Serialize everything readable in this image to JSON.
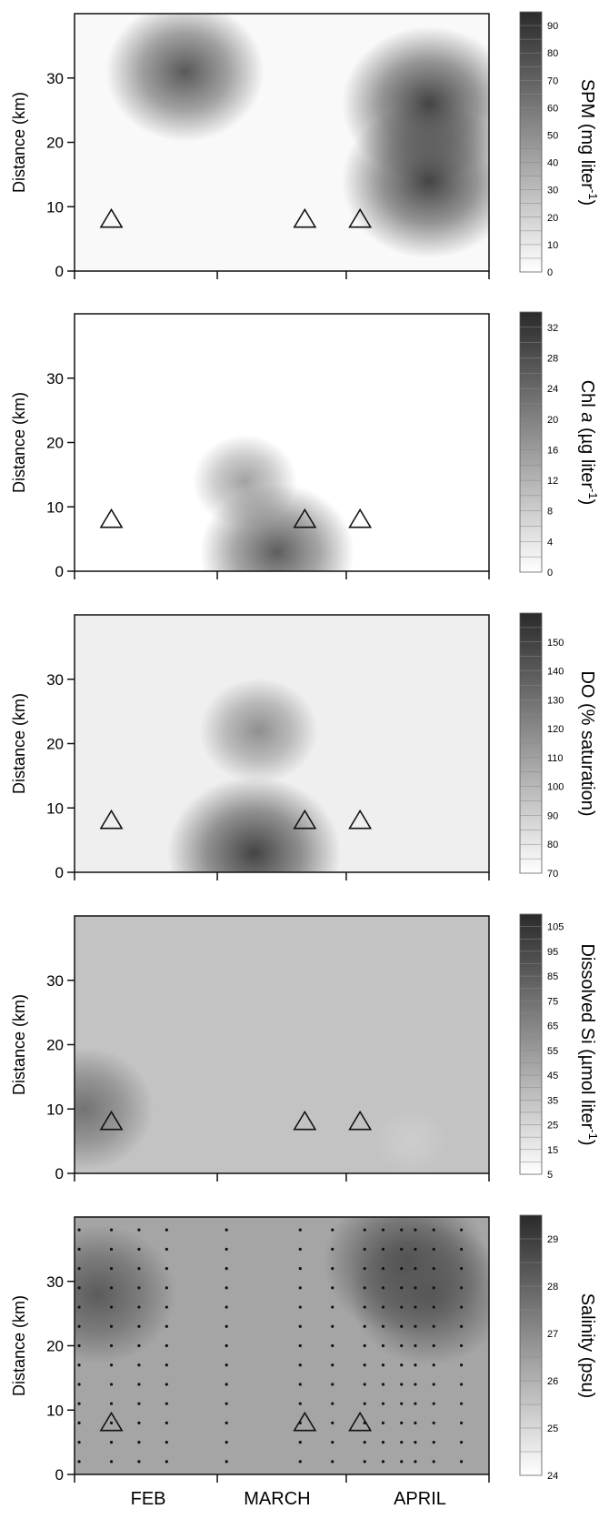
{
  "chart_data": [
    {
      "type": "heatmap",
      "ylabel": "Distance (km)",
      "yticks": [
        0,
        10,
        20,
        30
      ],
      "ylim": [
        0,
        40
      ],
      "colorbar": {
        "title": "SPM (mg liter",
        "title_sup": "-1",
        "title_end": ")",
        "ticks": [
          0,
          10,
          20,
          30,
          40,
          50,
          60,
          70,
          80,
          90
        ],
        "range": [
          0,
          95
        ]
      },
      "hotspots": [
        {
          "date": "Feb 18",
          "distance_km": 31,
          "value": 75
        },
        {
          "date": "Apr 12",
          "distance_km": 26,
          "value": 85
        },
        {
          "date": "Apr 12",
          "distance_km": 14,
          "value": 85
        }
      ],
      "background_level": 0.03,
      "markers": [
        {
          "date": "Feb 2",
          "distance_km": 8
        },
        {
          "date": "Mar 16",
          "distance_km": 8
        },
        {
          "date": "Mar 28",
          "distance_km": 8
        }
      ]
    },
    {
      "type": "heatmap",
      "ylabel": "Distance (km)",
      "yticks": [
        0,
        10,
        20,
        30
      ],
      "ylim": [
        0,
        40
      ],
      "colorbar": {
        "title": "Chl",
        "title_italic": "a",
        "title_rest": " (µg liter",
        "title_sup": "-1",
        "title_end": ")",
        "ticks": [
          0,
          4,
          8,
          12,
          16,
          20,
          24,
          28,
          32
        ],
        "range": [
          0,
          34
        ]
      },
      "hotspots": [
        {
          "date": "Mar 3",
          "distance_km": 14,
          "value": 15
        },
        {
          "date": "Mar 10",
          "distance_km": 3,
          "value": 26
        }
      ],
      "background_level": 0.0,
      "markers": [
        {
          "date": "Feb 2",
          "distance_km": 8
        },
        {
          "date": "Mar 16",
          "distance_km": 8
        },
        {
          "date": "Mar 28",
          "distance_km": 8
        }
      ]
    },
    {
      "type": "heatmap",
      "ylabel": "Distance (km)",
      "yticks": [
        0,
        10,
        20,
        30
      ],
      "ylim": [
        0,
        40
      ],
      "colorbar": {
        "title": "DO (% saturation)",
        "ticks": [
          70,
          80,
          90,
          100,
          110,
          120,
          130,
          140,
          150
        ],
        "range": [
          70,
          160
        ]
      },
      "hotspots": [
        {
          "date": "Mar 6",
          "distance_km": 22,
          "value": 118
        },
        {
          "date": "Mar 5",
          "distance_km": 3,
          "value": 150
        }
      ],
      "background_level": 0.08,
      "markers": [
        {
          "date": "Feb 2",
          "distance_km": 8
        },
        {
          "date": "Mar 16",
          "distance_km": 8
        },
        {
          "date": "Mar 28",
          "distance_km": 8
        }
      ]
    },
    {
      "type": "heatmap",
      "ylabel": "Distance (km)",
      "yticks": [
        0,
        10,
        20,
        30
      ],
      "ylim": [
        0,
        40
      ],
      "colorbar": {
        "title": "Dissolved Si (µmol liter",
        "title_sup": "-1",
        "title_end": ")",
        "ticks": [
          5,
          15,
          25,
          35,
          45,
          55,
          65,
          75,
          85,
          95,
          105
        ],
        "range": [
          5,
          110
        ]
      },
      "hotspots": [
        {
          "date": "Jan 27",
          "distance_km": 10,
          "value": 75
        },
        {
          "date": "Apr 8",
          "distance_km": 5,
          "value": 30
        }
      ],
      "background_level": 0.3,
      "markers": [
        {
          "date": "Feb 2",
          "distance_km": 8
        },
        {
          "date": "Mar 16",
          "distance_km": 8
        },
        {
          "date": "Mar 28",
          "distance_km": 8
        }
      ]
    },
    {
      "type": "heatmap",
      "xlabel_months": [
        "FEB",
        "MARCH",
        "APRIL"
      ],
      "ylabel": "Distance (km)",
      "yticks": [
        0,
        10,
        20,
        30
      ],
      "ylim": [
        0,
        40
      ],
      "colorbar": {
        "title": "Salinity (psu)",
        "ticks": [
          24,
          25,
          26,
          27,
          28,
          29
        ],
        "range": [
          24,
          29.5
        ]
      },
      "hotspots": [
        {
          "date": "Jan 30",
          "distance_km": 28,
          "value": 28.3
        },
        {
          "date": "Apr 7",
          "distance_km": 33,
          "value": 28.6
        },
        {
          "date": "Apr 12",
          "distance_km": 28,
          "value": 28.4
        }
      ],
      "background_level": 0.45,
      "markers": [
        {
          "date": "Feb 2",
          "distance_km": 8
        },
        {
          "date": "Mar 16",
          "distance_km": 8
        },
        {
          "date": "Mar 28",
          "distance_km": 8
        }
      ],
      "sample_dates": [
        "Jan 26",
        "Feb 2",
        "Feb 8",
        "Feb 14",
        "Feb 27",
        "Mar 15",
        "Mar 22",
        "Mar 29",
        "Apr 2",
        "Apr 6",
        "Apr 9",
        "Apr 13",
        "Apr 19"
      ],
      "sample_distances_km": [
        2,
        5,
        8,
        11,
        14,
        17,
        20,
        23,
        26,
        29,
        32,
        35,
        38
      ]
    }
  ]
}
